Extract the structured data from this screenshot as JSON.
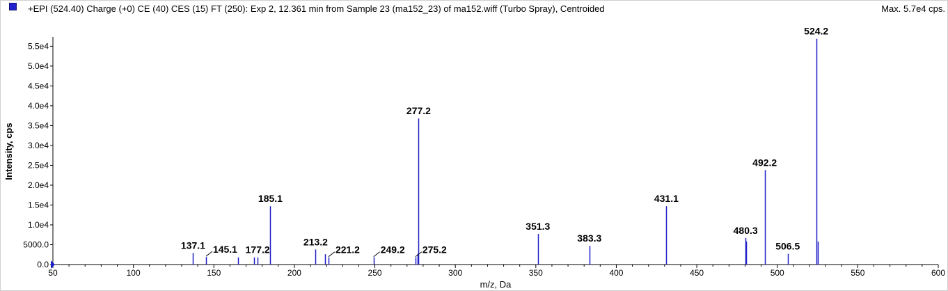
{
  "header": {
    "title": "+EPI (524.40) Charge (+0) CE (40) CES (15) FT (250): Exp 2, 12.361 min from Sample 23 (ma152_23) of ma152.wiff (Turbo Spray), Centroided",
    "max_label": "Max. 5.7e4 cps."
  },
  "colors": {
    "peak": "#1f1fc8",
    "axis": "#000000",
    "marker": "#1f1fc8"
  },
  "chart_data": {
    "type": "bar",
    "xlabel": "m/z, Da",
    "ylabel": "Intensity, cps",
    "xlim": [
      50,
      600
    ],
    "ylim": [
      0,
      57000
    ],
    "x_ticks": [
      "50",
      "100",
      "150",
      "200",
      "250",
      "300",
      "350",
      "400",
      "450",
      "500",
      "550",
      "600"
    ],
    "x_tick_values": [
      50,
      100,
      150,
      200,
      250,
      300,
      350,
      400,
      450,
      500,
      550,
      600
    ],
    "y_ticks": [
      "0.0",
      "5000.0",
      "1.0e4",
      "1.5e4",
      "2.0e4",
      "2.5e4",
      "3.0e4",
      "3.5e4",
      "4.0e4",
      "4.5e4",
      "5.0e4",
      "5.5e4"
    ],
    "y_tick_values": [
      0,
      5000,
      10000,
      15000,
      20000,
      25000,
      30000,
      35000,
      40000,
      45000,
      50000,
      55000
    ],
    "peaks": [
      {
        "mz": 137.1,
        "intensity": 2900
      },
      {
        "mz": 145.1,
        "intensity": 1900
      },
      {
        "mz": 165.0,
        "intensity": 1800
      },
      {
        "mz": 175.0,
        "intensity": 1800
      },
      {
        "mz": 177.2,
        "intensity": 1800
      },
      {
        "mz": 185.1,
        "intensity": 14700
      },
      {
        "mz": 213.2,
        "intensity": 3800
      },
      {
        "mz": 219.0,
        "intensity": 2600
      },
      {
        "mz": 221.2,
        "intensity": 1800
      },
      {
        "mz": 249.2,
        "intensity": 1800
      },
      {
        "mz": 275.2,
        "intensity": 1800
      },
      {
        "mz": 276.5,
        "intensity": 2700
      },
      {
        "mz": 277.2,
        "intensity": 36800
      },
      {
        "mz": 351.3,
        "intensity": 7700
      },
      {
        "mz": 383.3,
        "intensity": 4700
      },
      {
        "mz": 431.1,
        "intensity": 14700
      },
      {
        "mz": 480.3,
        "intensity": 6700
      },
      {
        "mz": 480.8,
        "intensity": 5800
      },
      {
        "mz": 492.2,
        "intensity": 23800
      },
      {
        "mz": 506.5,
        "intensity": 2700
      },
      {
        "mz": 524.2,
        "intensity": 56900
      },
      {
        "mz": 525.2,
        "intensity": 5800
      }
    ],
    "labels": [
      {
        "text": "137.1",
        "mz": 137.1,
        "intensity": 2900
      },
      {
        "text": "145.1",
        "mz": 145.1,
        "intensity": 1900,
        "leader": true
      },
      {
        "text": "177.2",
        "mz": 177.2,
        "intensity": 1800
      },
      {
        "text": "185.1",
        "mz": 185.1,
        "intensity": 14700
      },
      {
        "text": "213.2",
        "mz": 213.2,
        "intensity": 3800
      },
      {
        "text": "221.2",
        "mz": 221.2,
        "intensity": 1800,
        "leader": true
      },
      {
        "text": "249.2",
        "mz": 249.2,
        "intensity": 1800,
        "leader": true
      },
      {
        "text": "275.2",
        "mz": 275.2,
        "intensity": 1800,
        "leader": true
      },
      {
        "text": "277.2",
        "mz": 277.2,
        "intensity": 36800
      },
      {
        "text": "351.3",
        "mz": 351.3,
        "intensity": 7700
      },
      {
        "text": "383.3",
        "mz": 383.3,
        "intensity": 4700
      },
      {
        "text": "431.1",
        "mz": 431.1,
        "intensity": 14700
      },
      {
        "text": "480.3",
        "mz": 480.3,
        "intensity": 6700
      },
      {
        "text": "492.2",
        "mz": 492.2,
        "intensity": 23800
      },
      {
        "text": "506.5",
        "mz": 506.5,
        "intensity": 2700
      },
      {
        "text": "524.2",
        "mz": 524.2,
        "intensity": 56900
      }
    ]
  }
}
